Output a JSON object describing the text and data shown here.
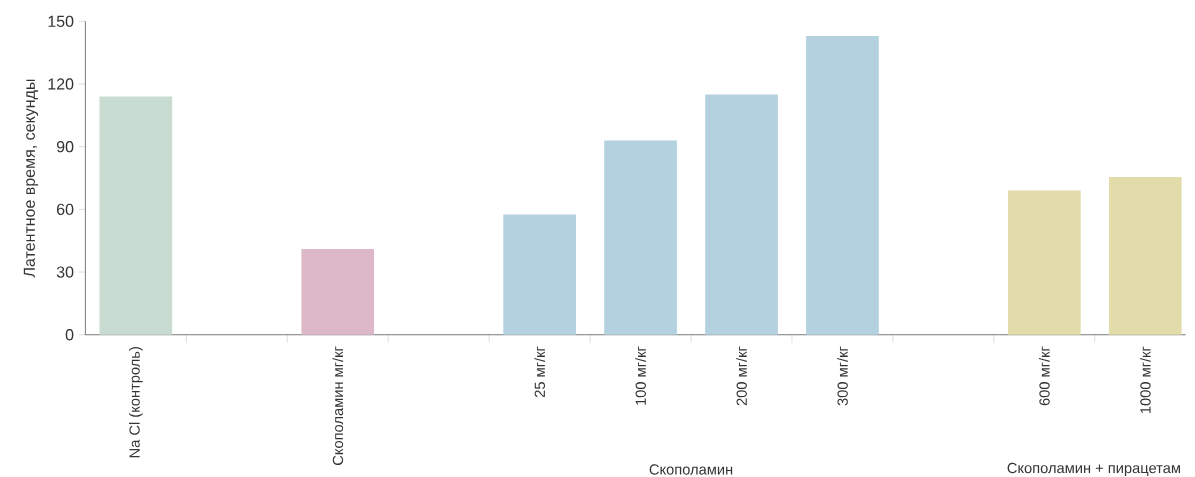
{
  "chart_data": {
    "type": "bar",
    "ylabel": "Латентное время, секунды",
    "categories": [
      "Na Cl (контроль)",
      null,
      "Скополамин мг/кг",
      null,
      "25 мг/кг",
      "100 мг/кг",
      "200 мг/кг",
      "300 мг/кг",
      null,
      "600 мг/кг",
      "1000 мг/кг"
    ],
    "values": [
      114,
      null,
      41,
      null,
      57.5,
      93,
      115,
      143,
      null,
      69,
      75.5
    ],
    "colors": [
      "#c9dcd2",
      "#cccccc",
      "#dcb8c8",
      "#cccccc",
      "#b3d1df",
      "#b3d1df",
      "#b3d1df",
      "#b3d1df",
      "#cccccc",
      "#e2dcaa",
      "#e2dcaa"
    ],
    "ylim": [
      0,
      150
    ],
    "yticks": [
      0,
      30,
      60,
      90,
      120,
      150
    ],
    "grid": false,
    "annotations": [
      "Скополамин",
      "Скополамин + пирацетам"
    ]
  }
}
